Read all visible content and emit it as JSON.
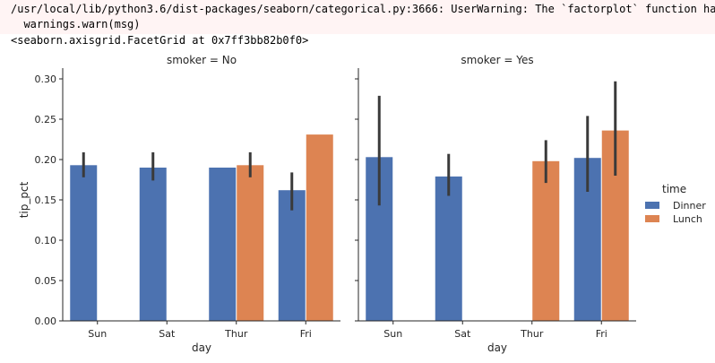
{
  "output": {
    "warning_line1": "/usr/local/lib/python3.6/dist-packages/seaborn/categorical.py:3666: UserWarning: The `factorplot` function has been",
    "warning_line2": "  warnings.warn(msg)",
    "repr_line": "<seaborn.axisgrid.FacetGrid at 0x7ff3bb82b0f0>"
  },
  "colors": {
    "dinner": "#4c72b0",
    "lunch": "#dd8452",
    "errorbar": "#3a3a3a",
    "axis": "#262626"
  },
  "chart_data": {
    "type": "bar",
    "xlabel": "day",
    "ylabel": "tip_pct",
    "ylim": [
      0,
      0.3
    ],
    "yticks": [
      "0.00",
      "0.05",
      "0.10",
      "0.15",
      "0.20",
      "0.25",
      "0.30"
    ],
    "categories": [
      "Sun",
      "Sat",
      "Thur",
      "Fri"
    ],
    "legend": {
      "title": "time",
      "position": "right",
      "entries": [
        "Dinner",
        "Lunch"
      ]
    },
    "panels": [
      {
        "title": "smoker = No",
        "series": [
          {
            "name": "Dinner",
            "values": [
              0.193,
              0.19,
              0.19,
              0.162
            ],
            "err_low": [
              0.178,
              0.174,
              null,
              0.137
            ],
            "err_high": [
              0.209,
              0.209,
              null,
              0.184
            ]
          },
          {
            "name": "Lunch",
            "values": [
              null,
              null,
              0.193,
              0.231
            ],
            "err_low": [
              null,
              null,
              0.178,
              null
            ],
            "err_high": [
              null,
              null,
              0.209,
              null
            ]
          }
        ]
      },
      {
        "title": "smoker = Yes",
        "series": [
          {
            "name": "Dinner",
            "values": [
              0.203,
              0.179,
              null,
              0.202
            ],
            "err_low": [
              0.143,
              0.155,
              null,
              0.16
            ],
            "err_high": [
              0.279,
              0.207,
              null,
              0.254
            ]
          },
          {
            "name": "Lunch",
            "values": [
              null,
              null,
              0.198,
              0.236
            ],
            "err_low": [
              null,
              null,
              0.171,
              0.18
            ],
            "err_high": [
              null,
              null,
              0.224,
              0.297
            ]
          }
        ]
      }
    ]
  }
}
